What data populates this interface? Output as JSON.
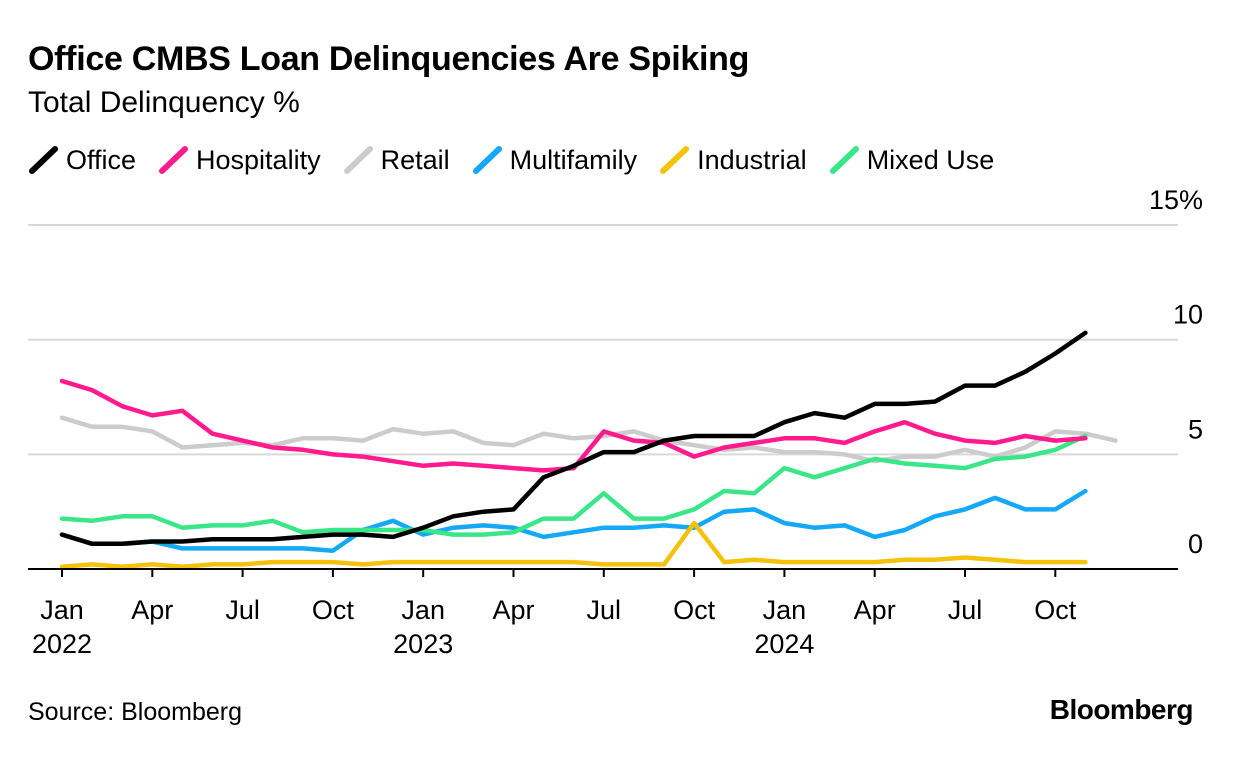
{
  "title": "Office CMBS Loan Delinquencies Are Spiking",
  "subtitle": "Total Delinquency %",
  "source": "Source: Bloomberg",
  "logo": "Bloomberg",
  "legend": [
    {
      "name": "Office",
      "color": "#000000"
    },
    {
      "name": "Hospitality",
      "color": "#ff1b8d"
    },
    {
      "name": "Retail",
      "color": "#cccccc"
    },
    {
      "name": "Multifamily",
      "color": "#15a9f5"
    },
    {
      "name": "Industrial",
      "color": "#f5c20b"
    },
    {
      "name": "Mixed Use",
      "color": "#3be689"
    }
  ],
  "chart_data": {
    "type": "line",
    "title": "Office CMBS Loan Delinquencies Are Spiking",
    "subtitle": "Total Delinquency %",
    "xlabel": "",
    "ylabel": "Total Delinquency %",
    "ylim": [
      0,
      15
    ],
    "y_ticks": [
      {
        "value": 0,
        "label": "0"
      },
      {
        "value": 5,
        "label": "5"
      },
      {
        "value": 10,
        "label": "10"
      },
      {
        "value": 15,
        "label": "15%"
      }
    ],
    "x_ticks": [
      {
        "month": "Jan",
        "year": "2022",
        "index": 0
      },
      {
        "month": "Apr",
        "year": "",
        "index": 3
      },
      {
        "month": "Jul",
        "year": "",
        "index": 6
      },
      {
        "month": "Oct",
        "year": "",
        "index": 9
      },
      {
        "month": "Jan",
        "year": "2023",
        "index": 12
      },
      {
        "month": "Apr",
        "year": "",
        "index": 15
      },
      {
        "month": "Jul",
        "year": "",
        "index": 18
      },
      {
        "month": "Oct",
        "year": "",
        "index": 21
      },
      {
        "month": "Jan",
        "year": "2024",
        "index": 24
      },
      {
        "month": "Apr",
        "year": "",
        "index": 27
      },
      {
        "month": "Jul",
        "year": "",
        "index": 30
      },
      {
        "month": "Oct",
        "year": "",
        "index": 33
      }
    ],
    "grid": true,
    "x_range_months": [
      0,
      37
    ],
    "series": [
      {
        "name": "Retail",
        "color": "#cccccc",
        "values": [
          6.6,
          6.2,
          6.2,
          6.0,
          5.3,
          5.4,
          5.5,
          5.4,
          5.7,
          5.7,
          5.6,
          6.1,
          5.9,
          6.0,
          5.5,
          5.4,
          5.9,
          5.7,
          5.8,
          6.0,
          5.6,
          5.4,
          5.2,
          5.3,
          5.1,
          5.1,
          5.0,
          4.7,
          4.9,
          4.9,
          5.2,
          4.9,
          5.3,
          6.0,
          5.9,
          5.6
        ]
      },
      {
        "name": "Multifamily",
        "color": "#15a9f5",
        "values": [
          1.5,
          1.1,
          1.1,
          1.2,
          0.9,
          0.9,
          0.9,
          0.9,
          0.9,
          0.8,
          1.7,
          2.1,
          1.5,
          1.8,
          1.9,
          1.8,
          1.4,
          1.6,
          1.8,
          1.8,
          1.9,
          1.8,
          2.5,
          2.6,
          2.0,
          1.8,
          1.9,
          1.4,
          1.7,
          2.3,
          2.6,
          3.1,
          2.6,
          2.6,
          3.4
        ]
      },
      {
        "name": "Mixed Use",
        "color": "#3be689",
        "values": [
          2.2,
          2.1,
          2.3,
          2.3,
          1.8,
          1.9,
          1.9,
          2.1,
          1.6,
          1.7,
          1.7,
          1.7,
          1.7,
          1.5,
          1.5,
          1.6,
          2.2,
          2.2,
          3.3,
          2.2,
          2.2,
          2.6,
          3.4,
          3.3,
          4.4,
          4.0,
          4.4,
          4.8,
          4.6,
          4.5,
          4.4,
          4.8,
          4.9,
          5.2,
          5.8
        ]
      },
      {
        "name": "Hospitality",
        "color": "#ff1b8d",
        "values": [
          8.2,
          7.8,
          7.1,
          6.7,
          6.9,
          5.9,
          5.6,
          5.3,
          5.2,
          5.0,
          4.9,
          4.7,
          4.5,
          4.6,
          4.5,
          4.4,
          4.3,
          4.4,
          6.0,
          5.6,
          5.5,
          4.9,
          5.3,
          5.5,
          5.7,
          5.7,
          5.5,
          6.0,
          6.4,
          5.9,
          5.6,
          5.5,
          5.8,
          5.6,
          5.7
        ]
      },
      {
        "name": "Industrial",
        "color": "#f5c20b",
        "values": [
          0.1,
          0.2,
          0.1,
          0.2,
          0.1,
          0.2,
          0.2,
          0.3,
          0.3,
          0.3,
          0.2,
          0.3,
          0.3,
          0.3,
          0.3,
          0.3,
          0.3,
          0.3,
          0.2,
          0.2,
          0.2,
          2.0,
          0.3,
          0.4,
          0.3,
          0.3,
          0.3,
          0.3,
          0.4,
          0.4,
          0.5,
          0.4,
          0.3,
          0.3,
          0.3
        ]
      },
      {
        "name": "Office",
        "color": "#000000",
        "values": [
          1.5,
          1.1,
          1.1,
          1.2,
          1.2,
          1.3,
          1.3,
          1.3,
          1.4,
          1.5,
          1.5,
          1.4,
          1.8,
          2.3,
          2.5,
          2.6,
          4.0,
          4.5,
          5.1,
          5.1,
          5.6,
          5.8,
          5.8,
          5.8,
          6.4,
          6.8,
          6.6,
          7.2,
          7.2,
          7.3,
          8.0,
          8.0,
          8.6,
          9.4,
          10.3
        ]
      }
    ]
  }
}
